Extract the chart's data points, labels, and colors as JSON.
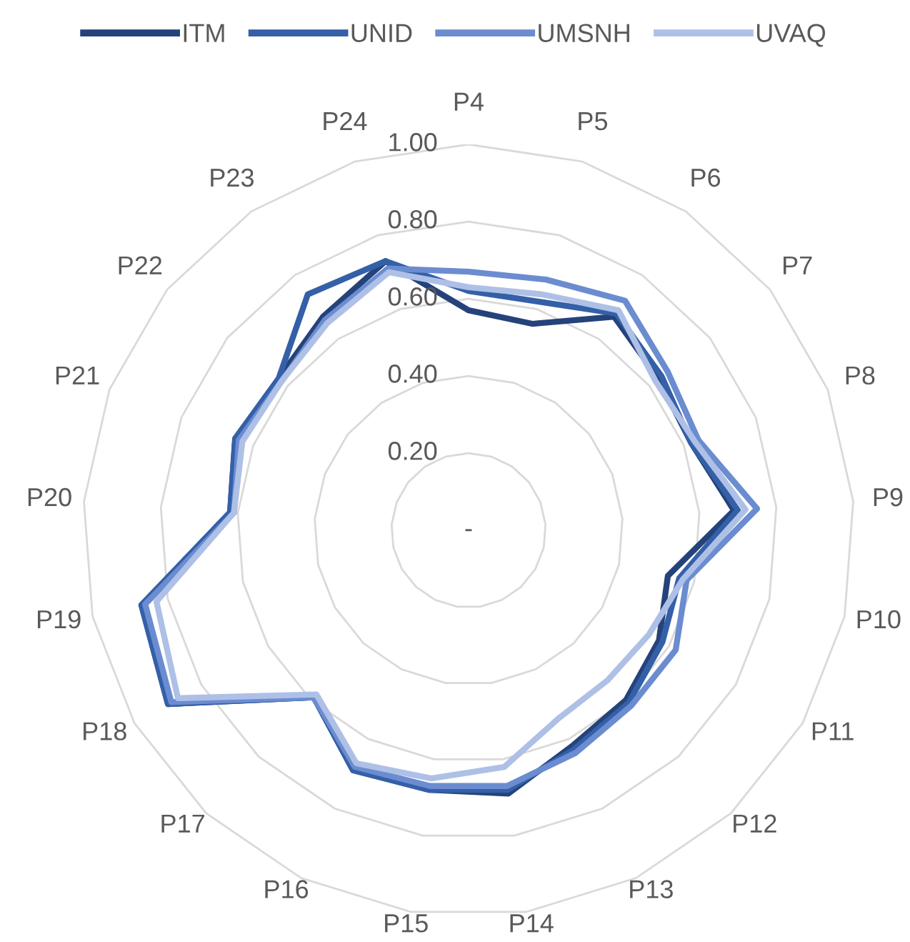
{
  "chart_data": {
    "type": "radar",
    "categories": [
      "P4",
      "P5",
      "P6",
      "P7",
      "P8",
      "P9",
      "P10",
      "P11",
      "P12",
      "P13",
      "P14",
      "P15",
      "P16",
      "P17",
      "P18",
      "P19",
      "P20",
      "P21",
      "P22",
      "P23",
      "P24"
    ],
    "series": [
      {
        "name": "ITM",
        "color": "#25437a",
        "values": [
          0.57,
          0.56,
          0.67,
          0.63,
          0.62,
          0.69,
          0.53,
          0.57,
          0.6,
          0.62,
          0.69,
          0.68,
          0.69,
          0.59,
          0.9,
          0.87,
          0.62,
          0.65,
          0.63,
          0.67,
          0.73
        ]
      },
      {
        "name": "UNID",
        "color": "#3460a8",
        "values": [
          0.62,
          0.62,
          0.68,
          0.64,
          0.62,
          0.7,
          0.56,
          0.58,
          0.61,
          0.63,
          0.68,
          0.68,
          0.69,
          0.59,
          0.9,
          0.87,
          0.62,
          0.65,
          0.63,
          0.74,
          0.73
        ]
      },
      {
        "name": "UMSNH",
        "color": "#6b8cd0",
        "values": [
          0.67,
          0.68,
          0.72,
          0.66,
          0.64,
          0.75,
          0.58,
          0.62,
          0.62,
          0.64,
          0.67,
          0.67,
          0.68,
          0.59,
          0.89,
          0.86,
          0.61,
          0.64,
          0.62,
          0.66,
          0.71
        ]
      },
      {
        "name": "UVAQ",
        "color": "#aec0e6",
        "values": [
          0.63,
          0.64,
          0.69,
          0.62,
          0.63,
          0.72,
          0.57,
          0.54,
          0.53,
          0.54,
          0.62,
          0.65,
          0.67,
          0.58,
          0.87,
          0.83,
          0.61,
          0.63,
          0.62,
          0.65,
          0.7
        ]
      }
    ],
    "ylim": [
      0,
      1.0
    ],
    "yticks": [
      {
        "value": 0,
        "label": "-"
      },
      {
        "value": 0.2,
        "label": "0.20"
      },
      {
        "value": 0.4,
        "label": "0.40"
      },
      {
        "value": 0.6,
        "label": "0.60"
      },
      {
        "value": 0.8,
        "label": "0.80"
      },
      {
        "value": 1.0,
        "label": "1.00"
      }
    ],
    "grid": true,
    "legend": "top"
  }
}
